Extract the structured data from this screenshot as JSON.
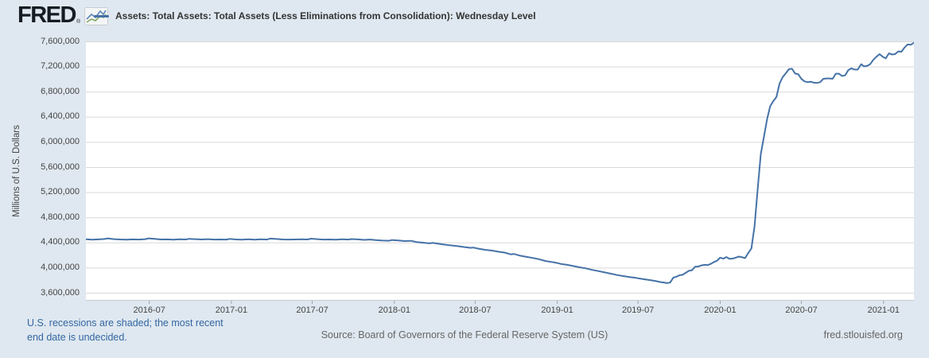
{
  "header": {
    "logo": "FRED",
    "registered_mark": "®"
  },
  "footer": {
    "recession_note_line1": "U.S. recessions are shaded; the most recent",
    "recession_note_line2": "end date is undecided.",
    "source": "Source: Board of Governors of the Federal Reserve System (US)",
    "site_link": "fred.stlouisfed.org"
  },
  "colors": {
    "background": "#dfe8f0",
    "plot_background": "#ffffff",
    "line": "#4572a7",
    "gridline": "#d9d9d9",
    "axis_line": "#c7ccd1",
    "tick_mark": "#9aa4ad",
    "axis_text": "#444444",
    "title_text": "#333333",
    "note_link": "#3366a2",
    "footer_text": "#666666"
  },
  "chart_data": {
    "type": "line",
    "title": "Assets: Total Assets: Total Assets (Less Eliminations from Consolidation): Wednesday Level",
    "xlabel": "",
    "ylabel": "Millions of U.S. Dollars",
    "ylim": [
      3600000,
      7600000
    ],
    "x_range": [
      "2016-02-10",
      "2021-03-10"
    ],
    "grid": "horizontal",
    "legend_position": "top-left",
    "yticks": [
      {
        "value": 3600000,
        "label": "3,600,000"
      },
      {
        "value": 4000000,
        "label": "4,000,000"
      },
      {
        "value": 4400000,
        "label": "4,400,000"
      },
      {
        "value": 4800000,
        "label": "4,800,000"
      },
      {
        "value": 5200000,
        "label": "5,200,000"
      },
      {
        "value": 5600000,
        "label": "5,600,000"
      },
      {
        "value": 6000000,
        "label": "6,000,000"
      },
      {
        "value": 6400000,
        "label": "6,400,000"
      },
      {
        "value": 6800000,
        "label": "6,800,000"
      },
      {
        "value": 7200000,
        "label": "7,200,000"
      },
      {
        "value": 7600000,
        "label": "7,600,000"
      }
    ],
    "xticks": [
      {
        "date": "2016-07-01",
        "label": "2016-07"
      },
      {
        "date": "2017-01-01",
        "label": "2017-01"
      },
      {
        "date": "2017-07-01",
        "label": "2017-07"
      },
      {
        "date": "2018-01-01",
        "label": "2018-01"
      },
      {
        "date": "2018-07-01",
        "label": "2018-07"
      },
      {
        "date": "2019-01-01",
        "label": "2019-01"
      },
      {
        "date": "2019-07-01",
        "label": "2019-07"
      },
      {
        "date": "2020-01-01",
        "label": "2020-01"
      },
      {
        "date": "2020-07-01",
        "label": "2020-07"
      },
      {
        "date": "2021-01-01",
        "label": "2021-01"
      }
    ],
    "series": [
      {
        "name": "Assets: Total Assets: Total Assets (Less Eliminations from Consolidation): Wednesday Level",
        "color": "#4572a7",
        "points": [
          [
            "2016-02-10",
            4457000
          ],
          [
            "2016-02-24",
            4451000
          ],
          [
            "2016-03-09",
            4456000
          ],
          [
            "2016-03-23",
            4462000
          ],
          [
            "2016-03-30",
            4472000
          ],
          [
            "2016-04-13",
            4460000
          ],
          [
            "2016-04-27",
            4455000
          ],
          [
            "2016-05-11",
            4452000
          ],
          [
            "2016-05-25",
            4456000
          ],
          [
            "2016-06-08",
            4453000
          ],
          [
            "2016-06-22",
            4459000
          ],
          [
            "2016-06-29",
            4472000
          ],
          [
            "2016-07-13",
            4463000
          ],
          [
            "2016-07-27",
            4454000
          ],
          [
            "2016-08-10",
            4456000
          ],
          [
            "2016-08-24",
            4452000
          ],
          [
            "2016-09-07",
            4458000
          ],
          [
            "2016-09-21",
            4454000
          ],
          [
            "2016-09-28",
            4465000
          ],
          [
            "2016-10-12",
            4459000
          ],
          [
            "2016-10-26",
            4454000
          ],
          [
            "2016-11-09",
            4459000
          ],
          [
            "2016-11-23",
            4453000
          ],
          [
            "2016-12-07",
            4455000
          ],
          [
            "2016-12-21",
            4453000
          ],
          [
            "2016-12-28",
            4463000
          ],
          [
            "2017-01-11",
            4454000
          ],
          [
            "2017-01-25",
            4450000
          ],
          [
            "2017-02-08",
            4457000
          ],
          [
            "2017-02-22",
            4452000
          ],
          [
            "2017-03-08",
            4458000
          ],
          [
            "2017-03-22",
            4453000
          ],
          [
            "2017-03-29",
            4468000
          ],
          [
            "2017-04-12",
            4462000
          ],
          [
            "2017-04-26",
            4455000
          ],
          [
            "2017-05-10",
            4453000
          ],
          [
            "2017-05-24",
            4455000
          ],
          [
            "2017-06-07",
            4457000
          ],
          [
            "2017-06-21",
            4454000
          ],
          [
            "2017-06-28",
            4467000
          ],
          [
            "2017-07-12",
            4460000
          ],
          [
            "2017-07-26",
            4453000
          ],
          [
            "2017-08-09",
            4455000
          ],
          [
            "2017-08-23",
            4451000
          ],
          [
            "2017-09-06",
            4457000
          ],
          [
            "2017-09-20",
            4453000
          ],
          [
            "2017-09-27",
            4461000
          ],
          [
            "2017-10-11",
            4456000
          ],
          [
            "2017-10-25",
            4448000
          ],
          [
            "2017-11-08",
            4453000
          ],
          [
            "2017-11-22",
            4443000
          ],
          [
            "2017-12-06",
            4437000
          ],
          [
            "2017-12-20",
            4434000
          ],
          [
            "2017-12-27",
            4446000
          ],
          [
            "2018-01-10",
            4439000
          ],
          [
            "2018-01-24",
            4429000
          ],
          [
            "2018-02-07",
            4433000
          ],
          [
            "2018-02-21",
            4412000
          ],
          [
            "2018-03-07",
            4403000
          ],
          [
            "2018-03-21",
            4393000
          ],
          [
            "2018-03-28",
            4400000
          ],
          [
            "2018-04-11",
            4385000
          ],
          [
            "2018-04-25",
            4371000
          ],
          [
            "2018-05-09",
            4360000
          ],
          [
            "2018-05-23",
            4348000
          ],
          [
            "2018-06-06",
            4334000
          ],
          [
            "2018-06-20",
            4322000
          ],
          [
            "2018-06-27",
            4325000
          ],
          [
            "2018-07-11",
            4304000
          ],
          [
            "2018-07-25",
            4289000
          ],
          [
            "2018-08-08",
            4277000
          ],
          [
            "2018-08-22",
            4259000
          ],
          [
            "2018-09-05",
            4246000
          ],
          [
            "2018-09-19",
            4218000
          ],
          [
            "2018-09-26",
            4224000
          ],
          [
            "2018-10-10",
            4196000
          ],
          [
            "2018-10-24",
            4177000
          ],
          [
            "2018-11-07",
            4161000
          ],
          [
            "2018-11-21",
            4140000
          ],
          [
            "2018-12-05",
            4113000
          ],
          [
            "2018-12-19",
            4096000
          ],
          [
            "2018-12-26",
            4089000
          ],
          [
            "2019-01-09",
            4066000
          ],
          [
            "2019-01-23",
            4051000
          ],
          [
            "2019-02-06",
            4032000
          ],
          [
            "2019-02-20",
            4011000
          ],
          [
            "2019-03-06",
            3995000
          ],
          [
            "2019-03-20",
            3971000
          ],
          [
            "2019-04-03",
            3952000
          ],
          [
            "2019-04-17",
            3931000
          ],
          [
            "2019-05-01",
            3910000
          ],
          [
            "2019-05-15",
            3889000
          ],
          [
            "2019-05-29",
            3872000
          ],
          [
            "2019-06-12",
            3857000
          ],
          [
            "2019-06-26",
            3843000
          ],
          [
            "2019-07-10",
            3827000
          ],
          [
            "2019-07-24",
            3812000
          ],
          [
            "2019-08-07",
            3796000
          ],
          [
            "2019-08-21",
            3776000
          ],
          [
            "2019-09-04",
            3761000
          ],
          [
            "2019-09-11",
            3769000
          ],
          [
            "2019-09-18",
            3845000
          ],
          [
            "2019-09-25",
            3862000
          ],
          [
            "2019-10-02",
            3885000
          ],
          [
            "2019-10-09",
            3892000
          ],
          [
            "2019-10-16",
            3924000
          ],
          [
            "2019-10-23",
            3956000
          ],
          [
            "2019-10-30",
            3966000
          ],
          [
            "2019-11-06",
            4022000
          ],
          [
            "2019-11-13",
            4024000
          ],
          [
            "2019-11-20",
            4042000
          ],
          [
            "2019-11-27",
            4050000
          ],
          [
            "2019-12-04",
            4047000
          ],
          [
            "2019-12-11",
            4066000
          ],
          [
            "2019-12-18",
            4095000
          ],
          [
            "2019-12-25",
            4116000
          ],
          [
            "2020-01-01",
            4165000
          ],
          [
            "2020-01-08",
            4149000
          ],
          [
            "2020-01-15",
            4175000
          ],
          [
            "2020-01-22",
            4145000
          ],
          [
            "2020-01-29",
            4151000
          ],
          [
            "2020-02-05",
            4166000
          ],
          [
            "2020-02-12",
            4182000
          ],
          [
            "2020-02-19",
            4171000
          ],
          [
            "2020-02-26",
            4158000
          ],
          [
            "2020-03-04",
            4241000
          ],
          [
            "2020-03-11",
            4312000
          ],
          [
            "2020-03-18",
            4668000
          ],
          [
            "2020-03-25",
            5254000
          ],
          [
            "2020-04-01",
            5811000
          ],
          [
            "2020-04-08",
            6083000
          ],
          [
            "2020-04-15",
            6367000
          ],
          [
            "2020-04-22",
            6573000
          ],
          [
            "2020-04-29",
            6656000
          ],
          [
            "2020-05-06",
            6721000
          ],
          [
            "2020-05-13",
            6934000
          ],
          [
            "2020-05-20",
            7037000
          ],
          [
            "2020-05-27",
            7097000
          ],
          [
            "2020-06-03",
            7165000
          ],
          [
            "2020-06-10",
            7169000
          ],
          [
            "2020-06-17",
            7095000
          ],
          [
            "2020-06-24",
            7082000
          ],
          [
            "2020-07-01",
            7009000
          ],
          [
            "2020-07-08",
            6969000
          ],
          [
            "2020-07-15",
            6958000
          ],
          [
            "2020-07-22",
            6964000
          ],
          [
            "2020-07-29",
            6949000
          ],
          [
            "2020-08-05",
            6945000
          ],
          [
            "2020-08-12",
            6957000
          ],
          [
            "2020-08-19",
            7010000
          ],
          [
            "2020-08-26",
            7017000
          ],
          [
            "2020-09-02",
            7017000
          ],
          [
            "2020-09-09",
            7011000
          ],
          [
            "2020-09-16",
            7093000
          ],
          [
            "2020-09-23",
            7093000
          ],
          [
            "2020-09-30",
            7056000
          ],
          [
            "2020-10-07",
            7066000
          ],
          [
            "2020-10-14",
            7150000
          ],
          [
            "2020-10-21",
            7177000
          ],
          [
            "2020-10-28",
            7158000
          ],
          [
            "2020-11-04",
            7157000
          ],
          [
            "2020-11-12",
            7243000
          ],
          [
            "2020-11-18",
            7209000
          ],
          [
            "2020-11-25",
            7215000
          ],
          [
            "2020-12-02",
            7243000
          ],
          [
            "2020-12-09",
            7311000
          ],
          [
            "2020-12-16",
            7362000
          ],
          [
            "2020-12-23",
            7404000
          ],
          [
            "2020-12-30",
            7363000
          ],
          [
            "2021-01-06",
            7335000
          ],
          [
            "2021-01-13",
            7415000
          ],
          [
            "2021-01-20",
            7398000
          ],
          [
            "2021-01-27",
            7404000
          ],
          [
            "2021-02-03",
            7447000
          ],
          [
            "2021-02-10",
            7442000
          ],
          [
            "2021-02-17",
            7507000
          ],
          [
            "2021-02-24",
            7557000
          ],
          [
            "2021-03-03",
            7553000
          ],
          [
            "2021-03-10",
            7584000
          ]
        ]
      }
    ]
  }
}
